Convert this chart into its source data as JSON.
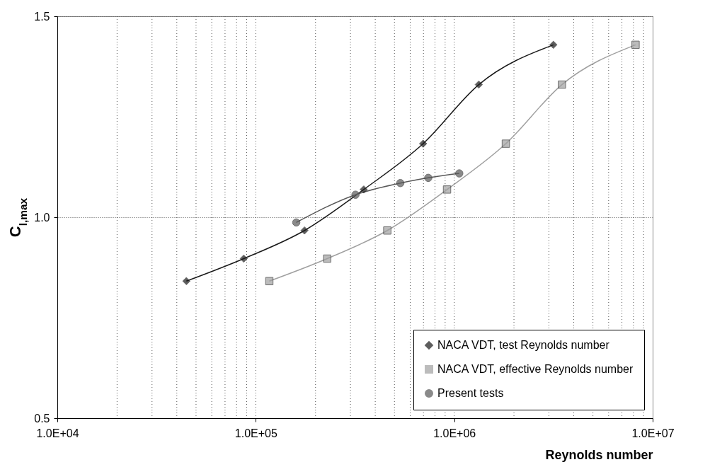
{
  "chart_data": {
    "type": "line",
    "xlabel": "Reynolds number",
    "ylabel": "C$_{l,max}$",
    "log": "x",
    "xlim": [
      10000,
      10000000
    ],
    "xticks": [
      {
        "value": 10000,
        "label": "1.0E+04"
      },
      {
        "value": 100000,
        "label": "1.0E+05"
      },
      {
        "value": 1000000,
        "label": "1.0E+06"
      },
      {
        "value": 10000000,
        "label": "1.0E+07"
      }
    ],
    "ylim": [
      0.5,
      1.5
    ],
    "yticks": [
      0.5,
      {
        "value": 1,
        "label": "1.0"
      },
      1.5
    ],
    "grid": true,
    "legend": "bottom right",
    "line_style": "solid",
    "series": [
      {
        "name": "NACA VDT, test Reynolds number",
        "color": "#1a1a1a",
        "marker": "diamond",
        "x": [
          44700,
          87000,
          176000,
          350000,
          697000,
          1330000,
          3160000
        ],
        "values": [
          0.841,
          0.897,
          0.967,
          1.069,
          1.183,
          1.33,
          1.429
        ]
      },
      {
        "name": "NACA VDT, effective Reynolds number",
        "color": "#a0a0a0",
        "marker": "square",
        "x": [
          117000,
          229000,
          460000,
          920000,
          1820000,
          3490000,
          8200000
        ],
        "values": [
          0.841,
          0.897,
          0.967,
          1.069,
          1.183,
          1.33,
          1.429
        ]
      },
      {
        "name": "Present tests",
        "color": "#595959",
        "marker": "circle",
        "x": [
          160000,
          318000,
          535000,
          740000,
          1060000
        ],
        "values": [
          0.987,
          1.056,
          1.085,
          1.098,
          1.109
        ]
      }
    ]
  }
}
